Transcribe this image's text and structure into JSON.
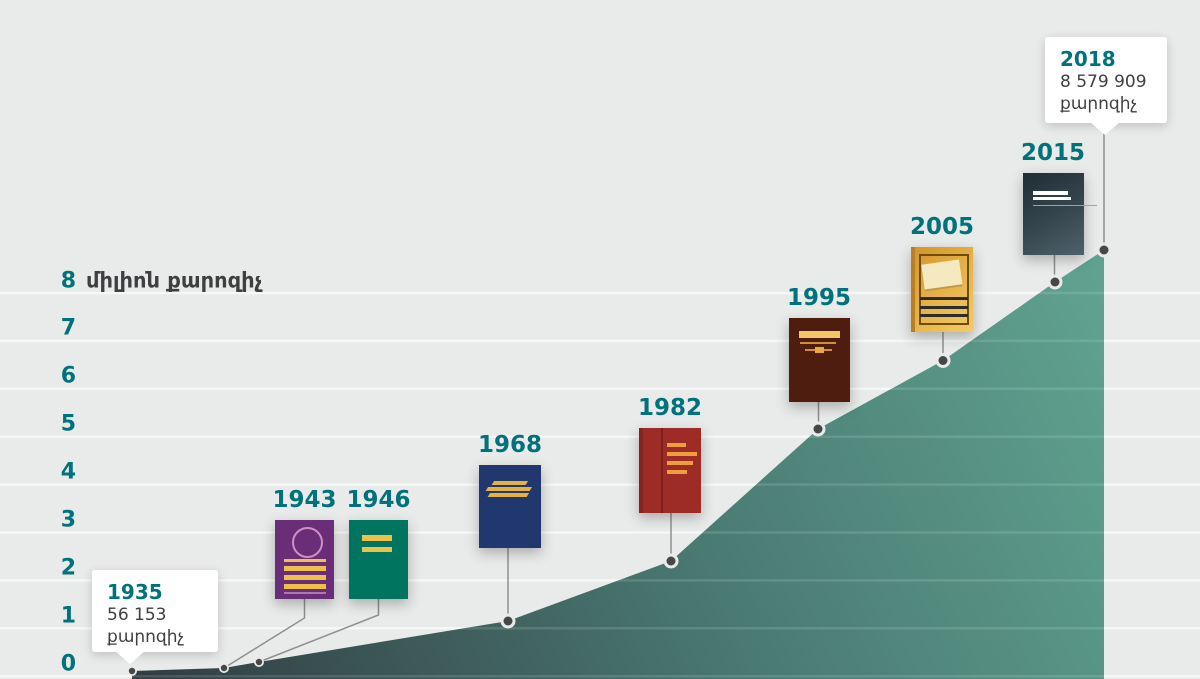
{
  "axis": {
    "top_value": "8",
    "top_label": "միլիոն քարոզիչ",
    "yticks": [
      "8",
      "7",
      "6",
      "5",
      "4",
      "3",
      "2",
      "1",
      "0"
    ]
  },
  "chart_data": {
    "type": "area",
    "title": "8 միլիոն քարոզիչ",
    "ylabel": "միլիոն քարոզիչ",
    "ylim": [
      0,
      8.6
    ],
    "grid": "horizontal",
    "legend": "none",
    "x": [
      1935,
      1943,
      1946,
      1968,
      1982,
      1995,
      2005,
      2015,
      2018
    ],
    "values_millions": [
      0.056,
      0.13,
      0.25,
      1.15,
      2.4,
      5.15,
      6.6,
      8.2,
      8.58
    ],
    "labeled_points": [
      {
        "year": "1935",
        "value": "56 153",
        "unit": "քարոզիչ"
      },
      {
        "year": "2018",
        "value": "8 579 909",
        "unit": "քարոզիչ"
      }
    ]
  },
  "milestones": [
    {
      "year": "1943",
      "cover": "#6a2d78"
    },
    {
      "year": "1946",
      "cover": "#00745f"
    },
    {
      "year": "1968",
      "cover": "#21386f"
    },
    {
      "year": "1982",
      "cover": "#9e2c26"
    },
    {
      "year": "1995",
      "cover": "#4f1d10"
    },
    {
      "year": "2005",
      "cover": "#d9a133"
    },
    {
      "year": "2015",
      "cover": "#2c3b43"
    }
  ],
  "callouts": {
    "start": {
      "year": "1935",
      "value": "56 153",
      "unit": "քարոզիչ"
    },
    "end": {
      "year": "2018",
      "value": "8 579 909",
      "unit": "քարոզիչ"
    }
  },
  "colors": {
    "background": "#e9eaea",
    "accent_teal": "#00727b",
    "text_dark": "#3f3e40",
    "gridline": "#f6f7f7",
    "area_gradient_start": "#323e43",
    "area_gradient_end": "#61a390",
    "leader_line": "#8f8f8f",
    "dot": "#474747"
  }
}
